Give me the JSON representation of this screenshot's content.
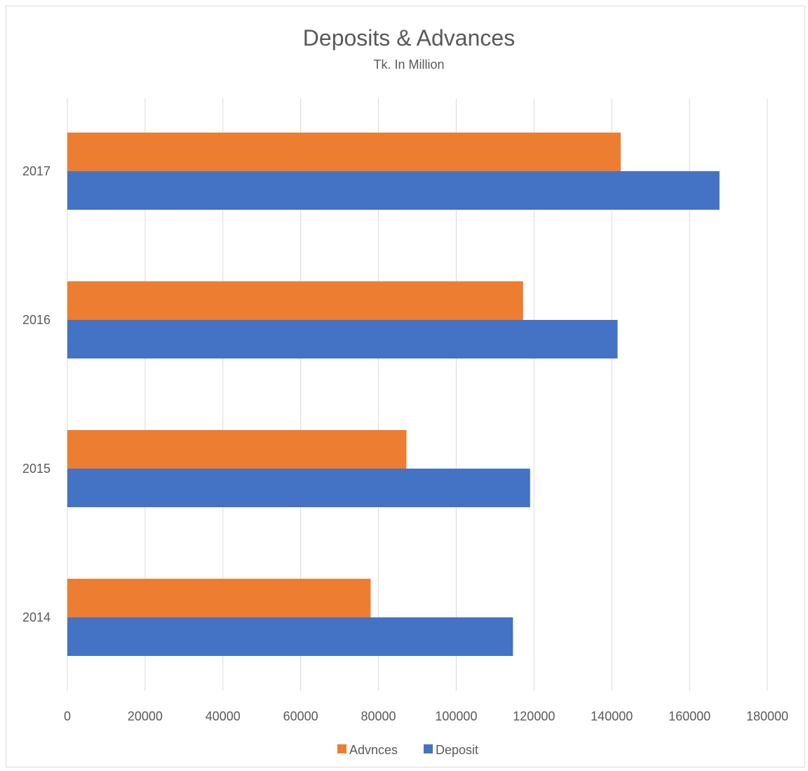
{
  "chart_data": {
    "type": "bar",
    "orientation": "horizontal",
    "title": "Deposits & Advances",
    "subtitle": "Tk. In Million",
    "categories": [
      "2014",
      "2015",
      "2016",
      "2017"
    ],
    "series": [
      {
        "name": "Advnces",
        "color": "#ED7D31",
        "values": [
          78000,
          87200,
          117200,
          142300
        ]
      },
      {
        "name": "Deposit",
        "color": "#4472C4",
        "values": [
          114600,
          119000,
          141500,
          167700
        ]
      }
    ],
    "xlim": [
      0,
      180000
    ],
    "xticks": [
      "0",
      "20000",
      "40000",
      "60000",
      "80000",
      "100000",
      "120000",
      "140000",
      "160000",
      "180000"
    ],
    "grid": true,
    "legend_position": "bottom"
  }
}
